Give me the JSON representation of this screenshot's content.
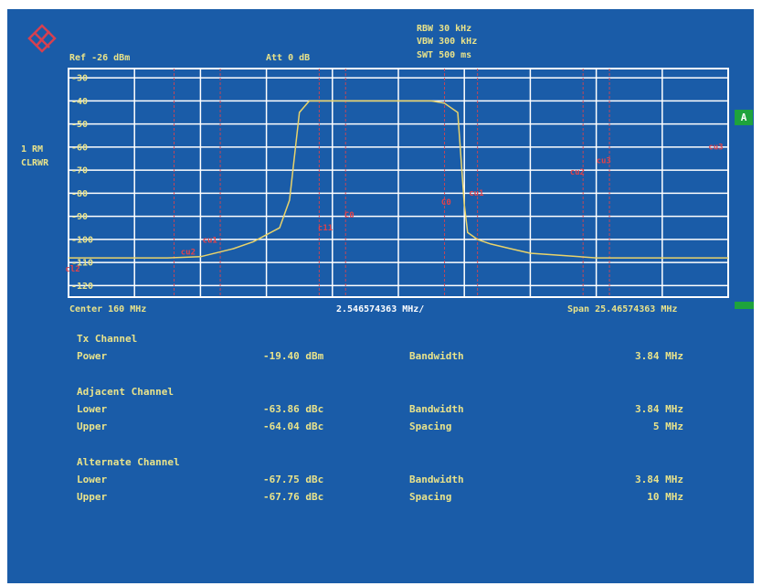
{
  "header": {
    "ref": "Ref -26 dBm",
    "att": "Att  0 dB",
    "rbw": "RBW 30 kHz",
    "vbw": "VBW 300 kHz",
    "swt": "SWT 500 ms",
    "trace_label_1": "1 RM",
    "trace_label_2": "CLRWR",
    "badge": "A"
  },
  "axis": {
    "center": "Center 160 MHz",
    "div": "2.546574363 MHz/",
    "span": "Span 25.46574363 MHz"
  },
  "chart_data": {
    "type": "line",
    "ylim": [
      -125,
      -26
    ],
    "y_ticks": [
      "-30",
      "-40",
      "-50",
      "-60",
      "-70",
      "-80",
      "-90",
      "-100",
      "-110",
      "-120"
    ],
    "x_divisions": 10,
    "grid": true,
    "series": [
      {
        "x": [
          0,
          0.5,
          1,
          1.5,
          2,
          2.5,
          2.8,
          3.0,
          3.2,
          3.35,
          3.5,
          3.65,
          3.8,
          4.0,
          4.5,
          5.0,
          5.5,
          5.7,
          5.9,
          6.0,
          6.05,
          6.2,
          6.4,
          6.7,
          7.0,
          7.5,
          8,
          8.5,
          9,
          9.5,
          10
        ],
        "values": [
          -108,
          -108,
          -108,
          -108,
          -107.5,
          -104,
          -101,
          -98,
          -95,
          -83,
          -45,
          -40,
          -40,
          -40,
          -40,
          -40,
          -40,
          -41,
          -45,
          -85,
          -97,
          -100,
          -102,
          -104,
          -106,
          -107,
          -108,
          -108,
          -108,
          -108,
          -108
        ]
      }
    ],
    "markers": [
      {
        "label": "cl2",
        "x": -0.05,
        "y": -114
      },
      {
        "label": "cu2",
        "x": 1.7,
        "y": -106.5
      },
      {
        "label": "cu1",
        "x": 2.03,
        "y": -101.5
      },
      {
        "label": "c11",
        "x": 3.78,
        "y": -96
      },
      {
        "label": "C0",
        "x": 4.18,
        "y": -90.5
      },
      {
        "label": "C0",
        "x": 5.65,
        "y": -85
      },
      {
        "label": "cu1",
        "x": 6.07,
        "y": -81
      },
      {
        "label": "cu2",
        "x": 7.6,
        "y": -72
      },
      {
        "label": "cu3",
        "x": 8.0,
        "y": -67
      },
      {
        "label": "cu3",
        "x": 9.7,
        "y": -61
      }
    ],
    "vlines_x": [
      1.6,
      2.3,
      3.8,
      4.2,
      5.7,
      6.2,
      7.8,
      8.2
    ]
  },
  "table": {
    "sections": [
      {
        "title": "Tx Channel",
        "rows": [
          {
            "name": "Power",
            "value": "-19.40 dBm",
            "param": "Bandwidth",
            "pvalue": "3.84 MHz"
          }
        ]
      },
      {
        "title": "Adjacent Channel",
        "rows": [
          {
            "name": "Lower",
            "value": "-63.86 dBc",
            "param": "Bandwidth",
            "pvalue": "3.84 MHz"
          },
          {
            "name": "Upper",
            "value": "-64.04 dBc",
            "param": "Spacing",
            "pvalue": "5 MHz"
          }
        ]
      },
      {
        "title": "Alternate Channel",
        "rows": [
          {
            "name": "Lower",
            "value": "-67.75 dBc",
            "param": "Bandwidth",
            "pvalue": "3.84 MHz"
          },
          {
            "name": "Upper",
            "value": "-67.76 dBc",
            "param": "Spacing",
            "pvalue": "10 MHz"
          }
        ]
      }
    ]
  },
  "colors": {
    "background": "#1a5ca8",
    "grid": "#ffffff",
    "trace": "#e9d36a",
    "text": "#e9e38a",
    "marker": "#e2424a",
    "badge": "#1ea33c"
  }
}
